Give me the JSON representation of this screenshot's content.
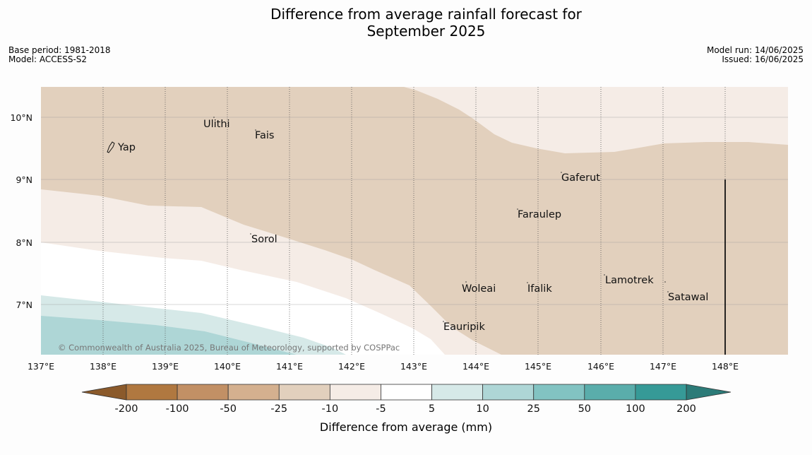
{
  "title_line1": "Difference from average rainfall forecast for",
  "title_line2": "September 2025",
  "meta_left": [
    "Base period: 1981-2018",
    "Model: ACCESS-S2"
  ],
  "meta_right": [
    "Model run: 14/06/2025",
    "Issued: 16/06/2025"
  ],
  "lat_ticks": [
    "10°N",
    "9°N",
    "8°N",
    "7°N"
  ],
  "lon_ticks": [
    "137°E",
    "138°E",
    "139°E",
    "140°E",
    "141°E",
    "142°E",
    "143°E",
    "144°E",
    "145°E",
    "146°E",
    "147°E",
    "148°E"
  ],
  "places": [
    "Yap",
    "Ulithi",
    "Fais",
    "Gaferut",
    "Faraulep",
    "Sorol",
    "Woleai",
    "Ifalik",
    "Lamotrek",
    "Satawal",
    "Eauripik"
  ],
  "copyright": "© Commonwealth of Australia 2025, Bureau of Meteorology, supported by COSPPac",
  "colorbar": {
    "labels": [
      "-200",
      "-100",
      "-50",
      "-25",
      "-10",
      "-5",
      "5",
      "10",
      "25",
      "50",
      "100",
      "200"
    ],
    "colors": [
      "#b07840",
      "#c29065",
      "#d4b08f",
      "#e2d0bd",
      "#f5ece6",
      "#ffffff",
      "#d6e9e8",
      "#aed6d6",
      "#82c3c2",
      "#5aadab",
      "#369a97"
    ],
    "low_extend_color": "#8b5a2b",
    "high_extend_color": "#2c7b78",
    "label": "Difference from average (mm)"
  },
  "region_colors": {
    "minus_25_10": "#e2d0bd",
    "minus_10_5": "#f5ece6",
    "neutral": "#ffffff",
    "plus_5_10": "#d6e9e8",
    "plus_10_25": "#aed6d6"
  }
}
